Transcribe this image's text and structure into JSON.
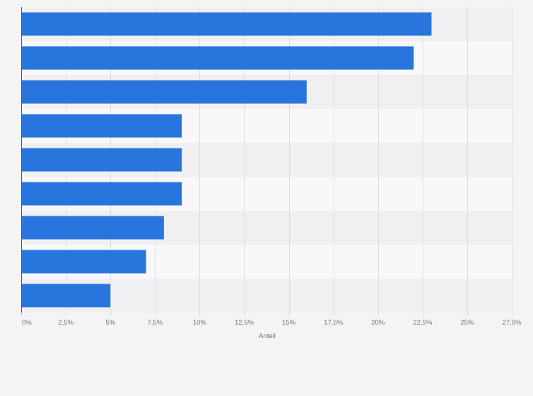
{
  "chart_data": {
    "type": "bar",
    "orientation": "horizontal",
    "categories": [
      "",
      "",
      "",
      "",
      "",
      "",
      "",
      "",
      ""
    ],
    "values": [
      23,
      22,
      16,
      9,
      9,
      9,
      8,
      7,
      5
    ],
    "unit": "%",
    "title": "",
    "xlabel": "Anteil",
    "ylabel": "",
    "xlim": [
      0,
      27.5
    ],
    "xticks": [
      0,
      2.5,
      5,
      7.5,
      10,
      12.5,
      15,
      17.5,
      20,
      22.5,
      25,
      27.5
    ],
    "xtick_labels": [
      "0%",
      "2,5%",
      "5%",
      "7,5%",
      "10%",
      "12,5%",
      "15%",
      "17,5%",
      "20%",
      "22,5%",
      "25%",
      "27,5%"
    ],
    "grid": "vertical",
    "legend": "none"
  },
  "colors": {
    "bar": "#2876dd",
    "band_dark": "#f0f0f2",
    "band_light": "#f8f8fa",
    "grid": "#dedede",
    "axis": "#555555",
    "page_background": "#f4f4f5"
  }
}
